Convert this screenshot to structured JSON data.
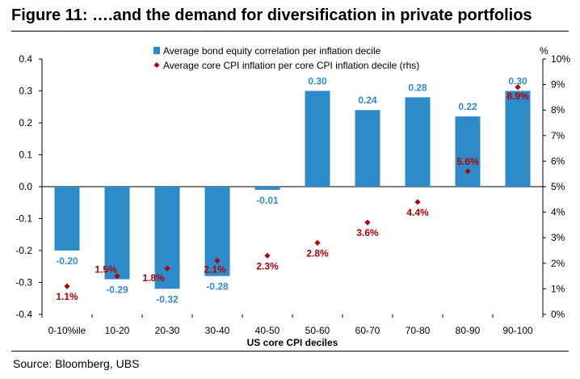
{
  "figure": {
    "title": "Figure 11: ….and the demand for diversification in private portfolios",
    "source": "Source: Bloomberg, UBS"
  },
  "chart_data": {
    "type": "bar",
    "categories": [
      "0-10%ile",
      "10-20",
      "20-30",
      "30-40",
      "40-50",
      "50-60",
      "60-70",
      "70-80",
      "80-90",
      "90-100"
    ],
    "xlabel": "US core CPI deciles",
    "ylim": [
      -0.4,
      0.4
    ],
    "yticks": [
      "0.4",
      "0.3",
      "0.2",
      "0.1",
      "0.0",
      "-0.1",
      "-0.2",
      "-0.3",
      "-0.4"
    ],
    "y2lim": [
      0,
      10
    ],
    "y2ticks": [
      "10%",
      "9%",
      "8%",
      "7%",
      "6%",
      "5%",
      "4%",
      "3%",
      "2%",
      "1%",
      "0%"
    ],
    "y2unit": "%",
    "legend_position": "top-center",
    "series": [
      {
        "name": "Average bond equity correlation per inflation decile",
        "type": "bar",
        "axis": "left",
        "color": "#2e8bc9",
        "values": [
          -0.2,
          -0.29,
          -0.32,
          -0.28,
          -0.01,
          0.3,
          0.24,
          0.28,
          0.22,
          0.3
        ],
        "labels": [
          "-0.20",
          "-0.29",
          "-0.32",
          "-0.28",
          "-0.01",
          "0.30",
          "0.24",
          "0.28",
          "0.22",
          "0.30"
        ]
      },
      {
        "name": "Average core CPI inflation per core CPI inflation decile (rhs)",
        "type": "scatter",
        "marker": "diamond",
        "axis": "right",
        "color": "#b00000",
        "values": [
          1.1,
          1.5,
          1.8,
          2.1,
          2.3,
          2.8,
          3.6,
          4.4,
          5.6,
          8.9
        ],
        "labels": [
          "1.1%",
          "1.5%",
          "1.8%",
          "2.1%",
          "2.3%",
          "2.8%",
          "3.6%",
          "4.4%",
          "5.6%",
          "8.9%"
        ]
      }
    ],
    "gridlines": false
  }
}
